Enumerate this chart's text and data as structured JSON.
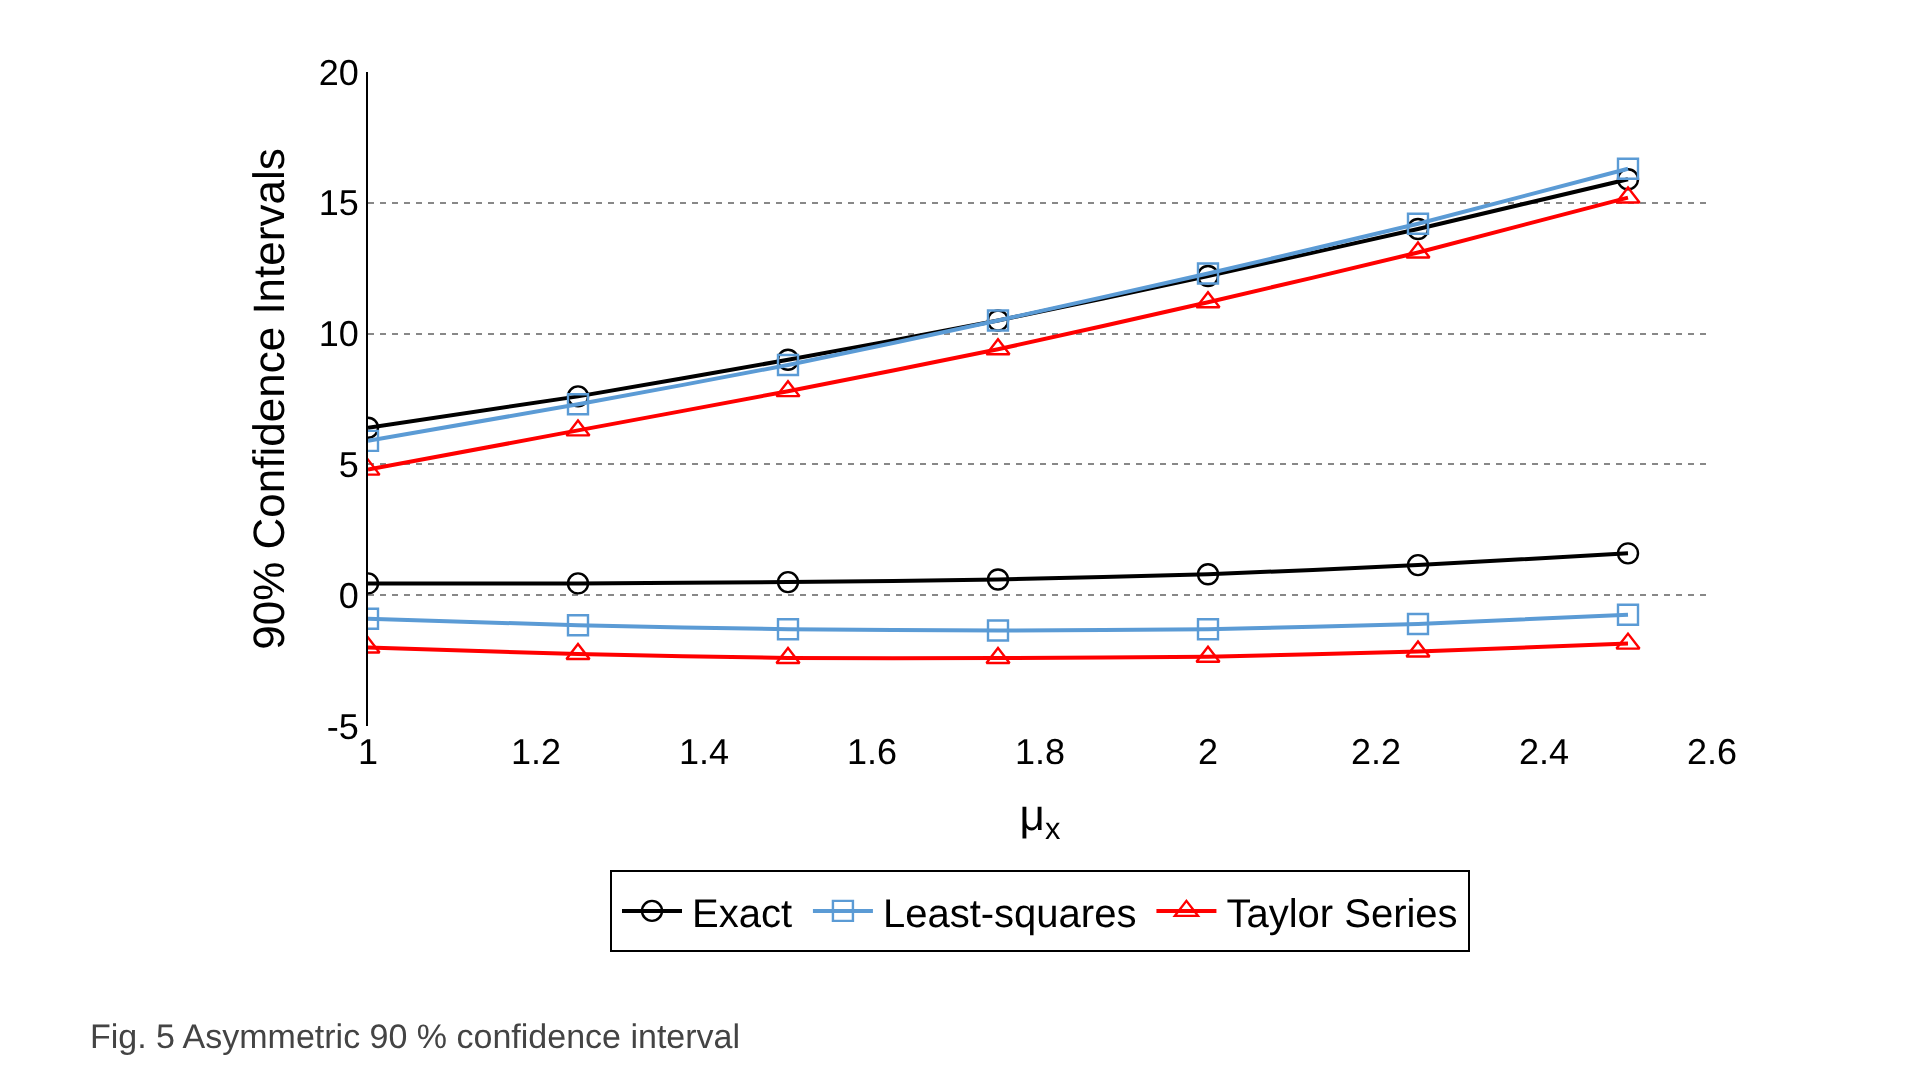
{
  "chart_data": {
    "type": "line",
    "xlabel": "μ$_{x}$",
    "ylabel": "90% Confidence Intervals",
    "x": [
      1,
      1.25,
      1.5,
      1.75,
      2,
      2.25,
      2.5
    ],
    "series": [
      {
        "name": "Exact",
        "color": "#000000",
        "marker": "circle",
        "values": [
          6.4,
          7.6,
          9.0,
          10.5,
          12.2,
          14.0,
          15.9
        ]
      },
      {
        "name": "Least-squares",
        "color": "#5b9bd5",
        "marker": "square",
        "values": [
          5.9,
          7.3,
          8.8,
          10.5,
          12.3,
          14.2,
          16.3
        ]
      },
      {
        "name": "Taylor Series",
        "color": "#ff0000",
        "marker": "triangle",
        "values": [
          4.8,
          6.3,
          7.8,
          9.4,
          11.2,
          13.1,
          15.2
        ]
      },
      {
        "color": "#000000",
        "marker": "circle",
        "values": [
          0.45,
          0.45,
          0.5,
          0.6,
          0.8,
          1.15,
          1.6
        ]
      },
      {
        "color": "#5b9bd5",
        "marker": "square",
        "values": [
          -0.9,
          -1.15,
          -1.3,
          -1.35,
          -1.3,
          -1.1,
          -0.75
        ]
      },
      {
        "color": "#ff0000",
        "marker": "triangle",
        "values": [
          -2.0,
          -2.25,
          -2.4,
          -2.4,
          -2.35,
          -2.15,
          -1.85
        ]
      }
    ],
    "xlim": [
      1,
      2.6
    ],
    "xticks": [
      1,
      1.2,
      1.4,
      1.6,
      1.8,
      2,
      2.2,
      2.4,
      2.6
    ],
    "ylim": [
      -5,
      20
    ],
    "yticks": [
      -5,
      0,
      5,
      10,
      15,
      20
    ],
    "grid": "y",
    "legend": "bottom",
    "line_style": "solid",
    "annotations": [
      "Fig. 5 Asymmetric 90 % confidence interval"
    ]
  }
}
